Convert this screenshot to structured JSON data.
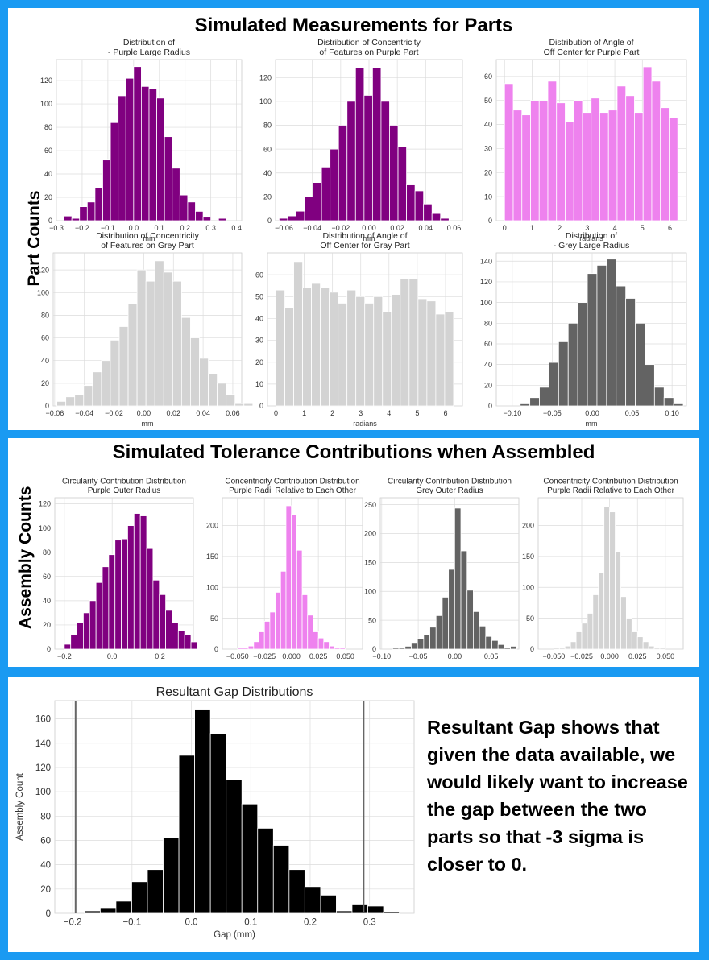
{
  "panel1": {
    "heading": "Simulated Measurements for Parts",
    "ylabel": "Part Counts"
  },
  "panel2": {
    "heading": "Simulated Tolerance Contributions when Assembled",
    "ylabel": "Assembly Counts"
  },
  "panel3": {
    "note": "Resultant Gap shows that given the data available, we would likely want to increase the gap between the two parts so that -3 sigma is closer to 0."
  },
  "colors": {
    "purple": "#800080",
    "pink": "#ee82ee",
    "grey": "#636363",
    "lightgrey": "#d3d3d3",
    "black": "#000000",
    "frame": "#1a9af2"
  },
  "chart_data": [
    {
      "type": "bar",
      "title": "Distribution of\n- Purple Large Radius",
      "xlabel": "mm",
      "ylabel": "",
      "bin_start": -0.27,
      "bin_width": 0.03,
      "values": [
        4,
        2,
        12,
        16,
        28,
        52,
        84,
        107,
        122,
        132,
        115,
        113,
        105,
        72,
        45,
        22,
        16,
        8,
        3,
        0,
        2,
        0
      ],
      "xlim": [
        -0.3,
        0.42
      ],
      "ylim": [
        0,
        138
      ],
      "xticks": [
        -0.3,
        -0.2,
        -0.1,
        0.0,
        0.1,
        0.2,
        0.3,
        0.4
      ],
      "xticklabels": [
        "−0.3",
        "−0.2",
        "−0.1",
        "0.0",
        "0.1",
        "0.2",
        "0.3",
        "0.4"
      ],
      "yticks": [
        0,
        20,
        40,
        60,
        80,
        100,
        120
      ],
      "yticklabels": [
        "0",
        "20",
        "40",
        "60",
        "80",
        "100",
        "120"
      ],
      "color": "purple",
      "grid": true
    },
    {
      "type": "bar",
      "title": "Distribution of Concentricity\nof Features on Purple Part",
      "xlabel": "mm",
      "ylabel": "",
      "bin_start": -0.0635,
      "bin_width": 0.006,
      "values": [
        2,
        4,
        8,
        20,
        32,
        45,
        60,
        80,
        100,
        128,
        105,
        128,
        100,
        80,
        62,
        30,
        25,
        14,
        6,
        2,
        0,
        0
      ],
      "xlim": [
        -0.066,
        0.066
      ],
      "ylim": [
        0,
        135
      ],
      "xticks": [
        -0.06,
        -0.04,
        -0.02,
        0.0,
        0.02,
        0.04,
        0.06
      ],
      "xticklabels": [
        "−0.06",
        "−0.04",
        "−0.02",
        "0.00",
        "0.02",
        "0.04",
        "0.06"
      ],
      "yticks": [
        0,
        20,
        40,
        60,
        80,
        100,
        120
      ],
      "yticklabels": [
        "0",
        "20",
        "40",
        "60",
        "80",
        "100",
        "120"
      ],
      "color": "purple",
      "grid": true
    },
    {
      "type": "bar",
      "title": "Distribution of Angle of\nOff Center for Purple Part",
      "xlabel": "radians",
      "ylabel": "",
      "bin_start": 0.0,
      "bin_width": 0.3142,
      "values": [
        57,
        46,
        44,
        50,
        50,
        58,
        49,
        41,
        50,
        45,
        51,
        45,
        46,
        56,
        52,
        45,
        64,
        58,
        47,
        43
      ],
      "xlim": [
        -0.3,
        6.6
      ],
      "ylim": [
        0,
        67
      ],
      "xticks": [
        0,
        1,
        2,
        3,
        4,
        5,
        6
      ],
      "xticklabels": [
        "0",
        "1",
        "2",
        "3",
        "4",
        "5",
        "6"
      ],
      "yticks": [
        0,
        10,
        20,
        30,
        40,
        50,
        60
      ],
      "yticklabels": [
        "0",
        "10",
        "20",
        "30",
        "40",
        "50",
        "60"
      ],
      "color": "pink",
      "grid": true
    },
    {
      "type": "bar",
      "title": "Distribution of Concentricity\nof Features on Grey Part",
      "xlabel": "mm",
      "ylabel": "",
      "bin_start": -0.0585,
      "bin_width": 0.006,
      "values": [
        4,
        8,
        10,
        18,
        30,
        40,
        58,
        70,
        90,
        120,
        110,
        128,
        118,
        110,
        78,
        60,
        42,
        28,
        20,
        10,
        2,
        2
      ],
      "xlim": [
        -0.061,
        0.066
      ],
      "ylim": [
        0,
        135
      ],
      "xticks": [
        -0.06,
        -0.04,
        -0.02,
        0.0,
        0.02,
        0.04,
        0.06
      ],
      "xticklabels": [
        "−0.06",
        "−0.04",
        "−0.02",
        "0.00",
        "0.02",
        "0.04",
        "0.06"
      ],
      "yticks": [
        0,
        20,
        40,
        60,
        80,
        100,
        120
      ],
      "yticklabels": [
        "0",
        "20",
        "40",
        "60",
        "80",
        "100",
        "120"
      ],
      "color": "lightgrey",
      "grid": true
    },
    {
      "type": "bar",
      "title": "Distribution of Angle of\nOff Center for Gray Part",
      "xlabel": "radians",
      "ylabel": "",
      "bin_start": 0.0,
      "bin_width": 0.3142,
      "values": [
        53,
        45,
        66,
        54,
        56,
        54,
        52,
        47,
        53,
        50,
        47,
        50,
        43,
        51,
        58,
        58,
        49,
        48,
        42,
        43
      ],
      "xlim": [
        -0.3,
        6.6
      ],
      "ylim": [
        0,
        70
      ],
      "xticks": [
        0,
        1,
        2,
        3,
        4,
        5,
        6
      ],
      "xticklabels": [
        "0",
        "1",
        "2",
        "3",
        "4",
        "5",
        "6"
      ],
      "yticks": [
        0,
        10,
        20,
        30,
        40,
        50,
        60
      ],
      "yticklabels": [
        "0",
        "10",
        "20",
        "30",
        "40",
        "50",
        "60"
      ],
      "color": "lightgrey",
      "grid": true
    },
    {
      "type": "bar",
      "title": "Distribution of\n- Grey Large Radius",
      "xlabel": "mm",
      "ylabel": "",
      "bin_start": -0.09,
      "bin_width": 0.012,
      "values": [
        2,
        8,
        18,
        42,
        62,
        80,
        100,
        128,
        136,
        142,
        116,
        104,
        80,
        40,
        18,
        8,
        2
      ],
      "xlim": [
        -0.12,
        0.118
      ],
      "ylim": [
        0,
        148
      ],
      "xticks": [
        -0.1,
        -0.05,
        0.0,
        0.05,
        0.1
      ],
      "xticklabels": [
        "−0.10",
        "−0.05",
        "0.00",
        "0.05",
        "0.10"
      ],
      "yticks": [
        0,
        20,
        40,
        60,
        80,
        100,
        120,
        140
      ],
      "yticklabels": [
        "0",
        "20",
        "40",
        "60",
        "80",
        "100",
        "120",
        "140"
      ],
      "color": "grey",
      "grid": true
    },
    {
      "type": "bar",
      "title": "Circularity Contribution Distribution\nPurple Outer Radius",
      "xlabel": "",
      "ylabel": "",
      "bin_start": -0.2,
      "bin_width": 0.0265,
      "values": [
        4,
        12,
        22,
        30,
        40,
        55,
        68,
        78,
        90,
        91,
        102,
        112,
        110,
        83,
        57,
        45,
        32,
        22,
        15,
        12,
        6
      ],
      "xlim": [
        -0.24,
        0.34
      ],
      "ylim": [
        0,
        125
      ],
      "xticks": [
        -0.2,
        0.0,
        0.2
      ],
      "xticklabels": [
        "−0.2",
        "0.0",
        "0.2"
      ],
      "yticks": [
        0,
        20,
        40,
        60,
        80,
        100,
        120
      ],
      "yticklabels": [
        "0",
        "20",
        "40",
        "60",
        "80",
        "100",
        "120"
      ],
      "color": "purple",
      "grid": true
    },
    {
      "type": "bar",
      "title": "Concentricity Contribution Distribution\nPurple Radii Relative to Each Other",
      "xlabel": "",
      "ylabel": "",
      "bin_start": -0.05,
      "bin_width": 0.005,
      "values": [
        2,
        2,
        5,
        12,
        28,
        45,
        60,
        92,
        126,
        232,
        218,
        160,
        88,
        55,
        28,
        18,
        12,
        5,
        2,
        2
      ],
      "xlim": [
        -0.064,
        0.066
      ],
      "ylim": [
        0,
        245
      ],
      "xticks": [
        -0.05,
        -0.025,
        0.0,
        0.025,
        0.05
      ],
      "xticklabels": [
        "−0.050",
        "−0.025",
        "0.000",
        "0.025",
        "0.050"
      ],
      "yticks": [
        0,
        50,
        100,
        150,
        200
      ],
      "yticklabels": [
        "0",
        "50",
        "100",
        "150",
        "200"
      ],
      "color": "pink",
      "grid": true
    },
    {
      "type": "bar",
      "title": "Circularity Contribution Distribution\nGrey Outer Radius",
      "xlabel": "",
      "ylabel": "",
      "bin_start": -0.085,
      "bin_width": 0.0085,
      "values": [
        2,
        2,
        5,
        10,
        18,
        25,
        38,
        58,
        90,
        138,
        244,
        170,
        102,
        65,
        40,
        22,
        15,
        8,
        2,
        5
      ],
      "xlim": [
        -0.102,
        0.088
      ],
      "ylim": [
        0,
        262
      ],
      "xticks": [
        -0.1,
        -0.05,
        0.0,
        0.05
      ],
      "xticklabels": [
        "−0.10",
        "−0.05",
        "0.00",
        "0.05"
      ],
      "yticks": [
        0,
        50,
        100,
        150,
        200,
        250
      ],
      "yticklabels": [
        "0",
        "50",
        "100",
        "150",
        "200",
        "250"
      ],
      "color": "grey",
      "grid": true
    },
    {
      "type": "bar",
      "title": "Concentricity Contribution Distribution\nPurple Radii Relative to Each Other",
      "xlabel": "",
      "ylabel": "",
      "bin_start": -0.05,
      "bin_width": 0.005,
      "values": [
        2,
        2,
        5,
        12,
        28,
        42,
        58,
        88,
        124,
        230,
        222,
        158,
        85,
        50,
        28,
        20,
        12,
        5,
        2,
        2
      ],
      "xlim": [
        -0.064,
        0.066
      ],
      "ylim": [
        0,
        245
      ],
      "xticks": [
        -0.05,
        -0.025,
        0.0,
        0.025,
        0.05
      ],
      "xticklabels": [
        "−0.050",
        "−0.025",
        "0.000",
        "0.025",
        "0.050"
      ],
      "yticks": [
        0,
        50,
        100,
        150,
        200
      ],
      "yticklabels": [
        "0",
        "50",
        "100",
        "150",
        "200"
      ],
      "color": "lightgrey",
      "grid": true
    },
    {
      "type": "bar",
      "title": "Resultant Gap Distributions",
      "xlabel": "Gap (mm)",
      "ylabel": "Assembly Count",
      "bin_start": -0.18,
      "bin_width": 0.0265,
      "values": [
        2,
        4,
        10,
        26,
        36,
        62,
        130,
        168,
        148,
        110,
        90,
        70,
        56,
        36,
        22,
        15,
        2,
        7,
        6,
        1
      ],
      "xlim": [
        -0.23,
        0.375
      ],
      "ylim": [
        0,
        175
      ],
      "xticks": [
        -0.2,
        -0.1,
        0.0,
        0.1,
        0.2,
        0.3
      ],
      "xticklabels": [
        "−0.2",
        "−0.1",
        "0.0",
        "0.1",
        "0.2",
        "0.3"
      ],
      "yticks": [
        0,
        20,
        40,
        60,
        80,
        100,
        120,
        140,
        160
      ],
      "yticklabels": [
        "0",
        "20",
        "40",
        "60",
        "80",
        "100",
        "120",
        "140",
        "160"
      ],
      "vlines": [
        -0.195,
        0.29
      ],
      "color": "black",
      "grid": true
    }
  ]
}
